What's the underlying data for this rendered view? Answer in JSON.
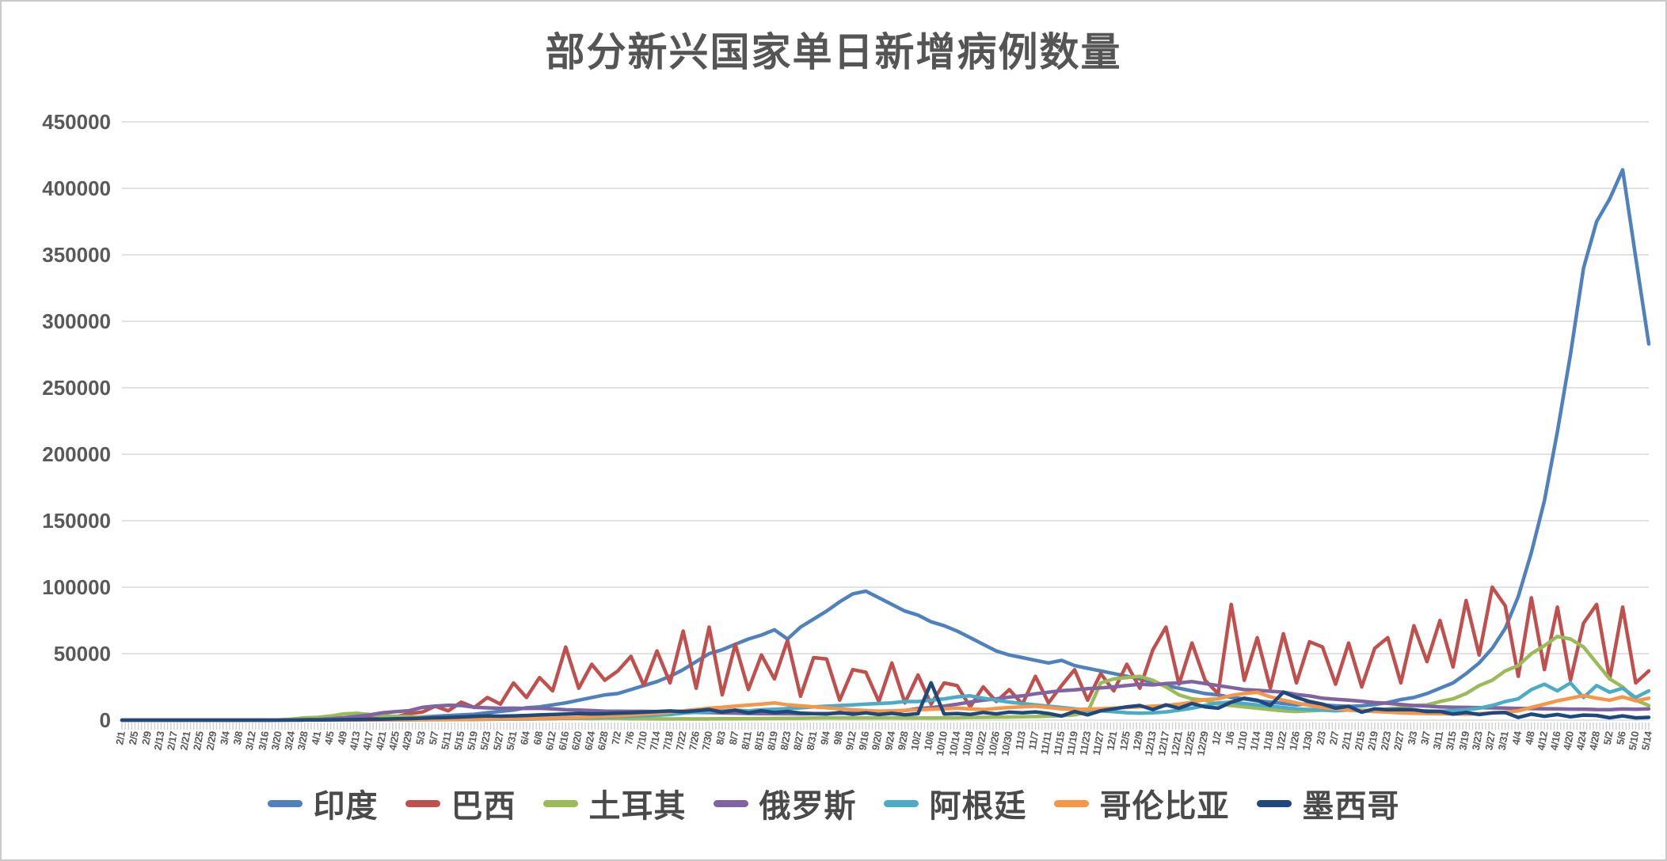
{
  "title": "部分新兴国家单日新增病例数量",
  "axis": {
    "y_label_color": "#595959",
    "grid_color": "#d9d9d9",
    "tick_color": "#cfcfcf"
  },
  "chart_data": {
    "type": "line",
    "title": "部分新兴国家单日新增病例数量",
    "xlabel": "",
    "ylabel": "",
    "ylim": [
      0,
      450000
    ],
    "y_ticks": [
      0,
      50000,
      100000,
      150000,
      200000,
      250000,
      300000,
      350000,
      400000,
      450000
    ],
    "grid": "horizontal",
    "legend_position": "bottom",
    "x_tick_step_days": 4,
    "x_tick_labels": [
      "2/1",
      "2/5",
      "2/9",
      "2/13",
      "2/17",
      "2/21",
      "2/25",
      "2/29",
      "3/4",
      "3/8",
      "3/12",
      "3/16",
      "3/20",
      "3/24",
      "3/28",
      "4/1",
      "4/5",
      "4/9",
      "4/13",
      "4/17",
      "4/21",
      "4/25",
      "4/29",
      "5/3",
      "5/7",
      "5/11",
      "5/15",
      "5/19",
      "5/23",
      "5/27",
      "5/31",
      "6/4",
      "6/8",
      "6/12",
      "6/16",
      "6/20",
      "6/24",
      "6/28",
      "7/2",
      "7/6",
      "7/10",
      "7/14",
      "7/18",
      "7/22",
      "7/26",
      "7/30",
      "8/3",
      "8/7",
      "8/11",
      "8/15",
      "8/19",
      "8/23",
      "8/27",
      "8/31",
      "9/4",
      "9/8",
      "9/12",
      "9/16",
      "9/20",
      "9/24",
      "9/28",
      "10/2",
      "10/6",
      "10/10",
      "10/14",
      "10/18",
      "10/22",
      "10/26",
      "10/30",
      "11/3",
      "11/7",
      "11/11",
      "11/15",
      "11/19",
      "11/23",
      "11/27",
      "12/1",
      "12/5",
      "12/9",
      "12/13",
      "12/17",
      "12/21",
      "12/25",
      "12/29",
      "1/2",
      "1/6",
      "1/10",
      "1/14",
      "1/18",
      "1/22",
      "1/26",
      "1/30",
      "2/3",
      "2/7",
      "2/11",
      "2/15",
      "2/19",
      "2/23",
      "2/27",
      "3/3",
      "3/7",
      "3/11",
      "3/15",
      "3/19",
      "3/23",
      "3/27",
      "3/31",
      "4/4",
      "4/8",
      "4/12",
      "4/16",
      "4/20",
      "4/24",
      "4/28",
      "5/2",
      "5/6",
      "5/10",
      "5/14"
    ],
    "series": [
      {
        "key": "india",
        "name": "印度",
        "color": "#4F81BD",
        "values": [
          0,
          0,
          0,
          0,
          0,
          0,
          0,
          0,
          0,
          0,
          0,
          50,
          100,
          150,
          300,
          400,
          600,
          900,
          1100,
          1300,
          1500,
          1700,
          1900,
          2400,
          2900,
          3400,
          3900,
          4400,
          5600,
          6600,
          7600,
          9300,
          10000,
          11500,
          13000,
          15000,
          17000,
          19000,
          20000,
          23000,
          26000,
          29000,
          33000,
          38000,
          44000,
          50000,
          53000,
          57000,
          61000,
          64000,
          68000,
          61000,
          70000,
          76000,
          82000,
          89000,
          95000,
          97000,
          92000,
          87000,
          82000,
          79000,
          74000,
          71000,
          67000,
          62000,
          57000,
          52000,
          49000,
          47000,
          45000,
          43000,
          45000,
          41000,
          39000,
          37000,
          35000,
          33000,
          31000,
          28000,
          26000,
          24000,
          22000,
          20000,
          19000,
          17000,
          16000,
          14500,
          13500,
          12500,
          11500,
          12500,
          11500,
          10800,
          10300,
          10800,
          11800,
          13200,
          15500,
          17000,
          20000,
          24000,
          28000,
          35000,
          43000,
          54000,
          69000,
          93000,
          126000,
          165000,
          217000,
          275000,
          340000,
          375000,
          392000,
          414000,
          348000,
          283000
        ]
      },
      {
        "key": "brazil",
        "name": "巴西",
        "color": "#C0504D",
        "values": [
          0,
          0,
          0,
          0,
          0,
          0,
          0,
          0,
          0,
          0,
          20,
          60,
          150,
          300,
          500,
          1100,
          1800,
          1300,
          2900,
          2000,
          3700,
          2500,
          5000,
          6000,
          10500,
          7000,
          13500,
          9500,
          17000,
          12000,
          28000,
          17000,
          32000,
          22000,
          55000,
          24000,
          42000,
          30000,
          37000,
          48000,
          26000,
          52000,
          28000,
          67000,
          24000,
          70000,
          19000,
          57000,
          23000,
          49000,
          31000,
          60000,
          18000,
          47000,
          46000,
          15000,
          38000,
          36000,
          14000,
          43000,
          13000,
          34000,
          12000,
          28000,
          26000,
          10000,
          25000,
          14000,
          23000,
          12000,
          33000,
          13000,
          26000,
          38000,
          15000,
          35000,
          22000,
          42000,
          24000,
          53000,
          70000,
          27000,
          58000,
          30000,
          20000,
          87000,
          30000,
          62000,
          24000,
          65000,
          28000,
          59000,
          55000,
          27000,
          58000,
          25000,
          54000,
          62000,
          28000,
          71000,
          44000,
          75000,
          40000,
          90000,
          49000,
          100000,
          86000,
          33000,
          92000,
          38000,
          85000,
          30000,
          73000,
          87000,
          31000,
          85000,
          28000,
          37000
        ]
      },
      {
        "key": "turkey",
        "name": "土耳其",
        "color": "#9BBB59",
        "values": [
          0,
          0,
          0,
          0,
          0,
          0,
          0,
          0,
          0,
          0,
          0,
          2,
          100,
          700,
          1700,
          2100,
          3100,
          4700,
          5100,
          4200,
          3100,
          2900,
          2700,
          2000,
          1800,
          1600,
          1200,
          1000,
          950,
          1100,
          1000,
          900,
          1000,
          1200,
          1500,
          1300,
          1200,
          1400,
          1300,
          1100,
          1000,
          950,
          900,
          950,
          920,
          960,
          1000,
          1100,
          1150,
          1200,
          1250,
          1300,
          1450,
          1600,
          1700,
          1700,
          1650,
          1700,
          1750,
          1700,
          1650,
          1600,
          1650,
          1700,
          1800,
          2000,
          2100,
          2200,
          2300,
          2500,
          2700,
          3000,
          3300,
          4000,
          6000,
          28000,
          31000,
          32000,
          33000,
          30000,
          25000,
          19000,
          16000,
          15000,
          12000,
          11000,
          10000,
          9000,
          8000,
          7000,
          6500,
          7000,
          7500,
          7800,
          8000,
          7500,
          7000,
          8500,
          9200,
          11000,
          11500,
          14000,
          16000,
          20000,
          26000,
          30000,
          37000,
          41000,
          50000,
          56000,
          63000,
          61000,
          55000,
          43000,
          31000,
          25000,
          15000,
          11000
        ]
      },
      {
        "key": "russia",
        "name": "俄罗斯",
        "color": "#8064A2",
        "values": [
          0,
          0,
          0,
          0,
          0,
          0,
          0,
          0,
          0,
          0,
          10,
          30,
          60,
          150,
          300,
          500,
          1000,
          1800,
          2800,
          4000,
          5600,
          6400,
          7100,
          9600,
          10600,
          11200,
          11000,
          9700,
          9200,
          8900,
          9000,
          8800,
          8900,
          8500,
          7800,
          7600,
          7200,
          6800,
          6700,
          6600,
          6600,
          6400,
          6300,
          5900,
          5800,
          5700,
          5400,
          5300,
          5000,
          4900,
          4800,
          4800,
          4700,
          4900,
          5000,
          5100,
          5400,
          5900,
          6200,
          6600,
          7200,
          8700,
          9400,
          10600,
          12000,
          13600,
          15000,
          16000,
          17300,
          18300,
          19800,
          21000,
          22200,
          22800,
          23700,
          24300,
          25000,
          26000,
          27000,
          26500,
          27500,
          28000,
          29000,
          27500,
          26000,
          24500,
          23000,
          22500,
          21700,
          21100,
          19300,
          18200,
          16500,
          15700,
          15000,
          14200,
          13200,
          12700,
          11700,
          11000,
          10600,
          10000,
          9700,
          9600,
          9400,
          9200,
          9100,
          8800,
          8700,
          8600,
          8500,
          8300,
          8300,
          8000,
          7900,
          8400,
          8200,
          8500
        ]
      },
      {
        "key": "argentina",
        "name": "阿根廷",
        "color": "#4BACC6",
        "values": [
          0,
          0,
          0,
          0,
          0,
          0,
          0,
          0,
          0,
          0,
          0,
          5,
          30,
          60,
          100,
          100,
          100,
          120,
          130,
          150,
          170,
          220,
          260,
          280,
          300,
          330,
          400,
          450,
          600,
          700,
          800,
          900,
          1100,
          1200,
          1400,
          1600,
          2000,
          2200,
          2600,
          2900,
          3300,
          3700,
          4200,
          5300,
          5900,
          6400,
          6900,
          7500,
          7000,
          7800,
          8200,
          8700,
          9200,
          10000,
          10500,
          11000,
          11500,
          12000,
          12500,
          13000,
          14000,
          14000,
          15000,
          16000,
          17500,
          18300,
          16500,
          15000,
          13500,
          12500,
          11500,
          10500,
          9500,
          8500,
          7500,
          7000,
          6300,
          5600,
          5200,
          5500,
          6200,
          7500,
          9000,
          11000,
          13000,
          13500,
          12500,
          11500,
          10500,
          9500,
          8500,
          8000,
          7500,
          7000,
          7700,
          6800,
          7200,
          6500,
          7000,
          6800,
          7000,
          6600,
          7200,
          7800,
          9000,
          11000,
          14000,
          16000,
          23000,
          27000,
          22000,
          28000,
          17000,
          26000,
          21000,
          24000,
          17000,
          22000
        ]
      },
      {
        "key": "colombia",
        "name": "哥伦比亚",
        "color": "#F79646",
        "values": [
          0,
          0,
          0,
          0,
          0,
          0,
          0,
          0,
          0,
          0,
          0,
          1,
          20,
          50,
          100,
          120,
          100,
          110,
          150,
          180,
          220,
          300,
          350,
          400,
          450,
          500,
          600,
          700,
          800,
          1000,
          1100,
          1200,
          1400,
          1500,
          1800,
          2100,
          2500,
          3000,
          3300,
          3900,
          4500,
          5100,
          6000,
          7000,
          8000,
          9000,
          9700,
          10500,
          11300,
          12000,
          13000,
          11500,
          10800,
          10000,
          9300,
          8500,
          7800,
          7200,
          6800,
          7000,
          7400,
          7800,
          8200,
          8600,
          9000,
          8400,
          8000,
          8800,
          9500,
          10000,
          10500,
          9500,
          8500,
          8000,
          8300,
          8600,
          9000,
          9500,
          10000,
          10500,
          11000,
          12000,
          13500,
          15500,
          16000,
          18500,
          20000,
          21000,
          17500,
          15000,
          13000,
          11000,
          9500,
          8500,
          7500,
          7000,
          6500,
          6000,
          5500,
          5200,
          5000,
          4800,
          4600,
          4500,
          4800,
          5300,
          6000,
          7000,
          9500,
          12000,
          14500,
          16500,
          18500,
          16500,
          15000,
          17500,
          14500,
          16500
        ]
      },
      {
        "key": "mexico",
        "name": "墨西哥",
        "color": "#1F497D",
        "values": [
          0,
          0,
          0,
          0,
          0,
          0,
          0,
          0,
          0,
          0,
          0,
          5,
          20,
          50,
          100,
          150,
          250,
          350,
          450,
          600,
          800,
          1000,
          1200,
          1500,
          1800,
          2000,
          2400,
          2800,
          3200,
          3000,
          3200,
          3500,
          3900,
          4200,
          4600,
          5000,
          4700,
          4900,
          5300,
          5600,
          6000,
          6500,
          6900,
          6300,
          7100,
          8000,
          6000,
          7500,
          5500,
          7000,
          5700,
          6500,
          5300,
          4900,
          4600,
          5800,
          4400,
          5500,
          4200,
          5100,
          4000,
          4800,
          28100,
          4600,
          5000,
          4300,
          5800,
          4700,
          6000,
          5500,
          6200,
          5000,
          3100,
          6500,
          4000,
          7000,
          8500,
          10000,
          11000,
          8000,
          11500,
          9000,
          12500,
          10000,
          9000,
          13500,
          16500,
          15000,
          11000,
          21000,
          17000,
          14000,
          12000,
          9000,
          10500,
          6000,
          8500,
          7800,
          8000,
          7800,
          6500,
          6600,
          4500,
          5800,
          4200,
          5500,
          5700,
          2000,
          4500,
          2900,
          4200,
          2500,
          3800,
          3500,
          1800,
          3200,
          1700,
          2100
        ]
      }
    ]
  }
}
